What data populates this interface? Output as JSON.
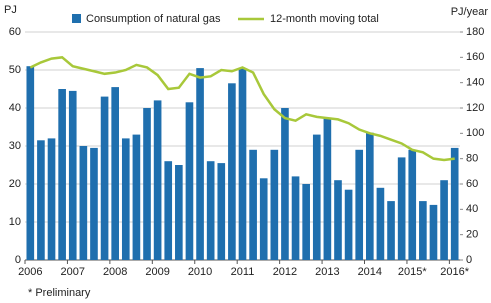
{
  "chart_data": {
    "type": "bar_line",
    "y_label": "PJ",
    "y2_label": "PJ/year",
    "note": "* Preliminary",
    "categories": [
      "2006",
      null,
      null,
      null,
      "2007",
      null,
      null,
      null,
      "2008",
      null,
      null,
      null,
      "2009",
      null,
      null,
      null,
      "2010",
      null,
      null,
      null,
      "2011",
      null,
      null,
      null,
      "2012",
      null,
      null,
      null,
      "2013",
      null,
      null,
      null,
      "2014",
      null,
      null,
      null,
      "2015*",
      null,
      null,
      null,
      "2016*"
    ],
    "series": [
      {
        "name": "Consumption of natural gas",
        "type": "bar",
        "color": "#1f6fae",
        "values": [
          51,
          31.5,
          32,
          45,
          44.5,
          30,
          29.5,
          43,
          45.5,
          32,
          33,
          40,
          42,
          26,
          25,
          41.5,
          50.5,
          26,
          25.5,
          46.5,
          50.5,
          29,
          21.5,
          29,
          40,
          22,
          20,
          33,
          37.5,
          21,
          18.5,
          29,
          33.5,
          19,
          15.5,
          27,
          29,
          15.5,
          14.5,
          21,
          29.5
        ]
      },
      {
        "name": "12-month moving total",
        "type": "line",
        "axis": "y2",
        "color": "#a8c83a",
        "values": [
          152,
          156,
          159,
          160,
          153,
          151,
          149,
          147,
          148,
          150,
          154,
          152,
          146,
          135,
          136,
          147,
          144,
          145,
          150,
          149,
          152,
          148,
          131,
          119,
          112,
          110,
          115,
          113,
          112,
          111,
          108,
          103,
          100,
          98,
          95,
          92,
          87,
          85,
          80,
          79,
          80
        ]
      }
    ],
    "ylim": [
      0,
      60
    ],
    "yticks": [
      0,
      10,
      20,
      30,
      40,
      50,
      60
    ],
    "y2lim": [
      0,
      180
    ],
    "y2ticks": [
      0,
      20,
      40,
      60,
      80,
      100,
      120,
      140,
      160,
      180
    ],
    "grid": true
  }
}
